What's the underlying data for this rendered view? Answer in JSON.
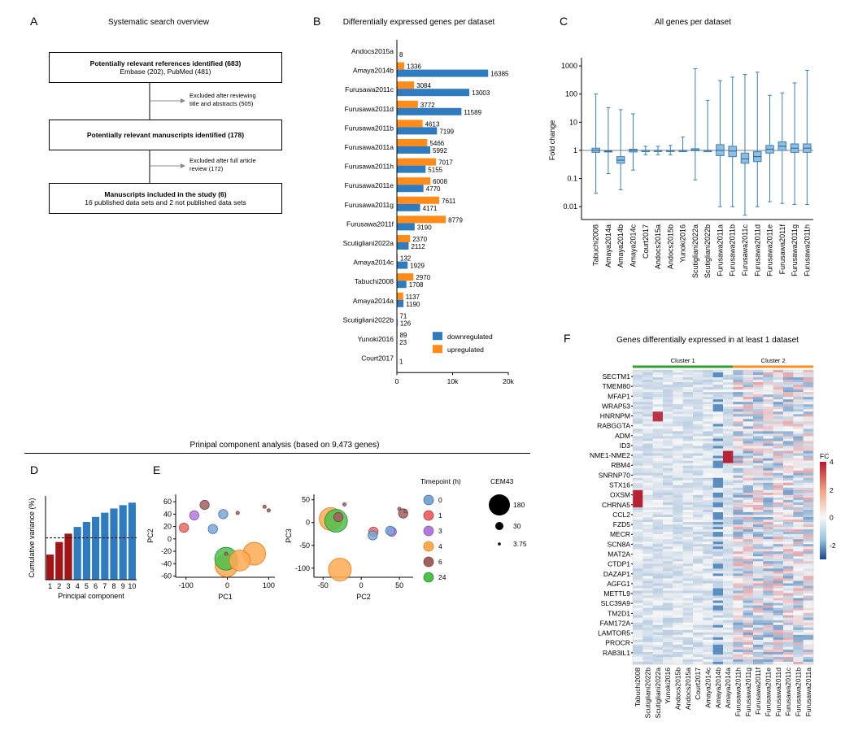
{
  "panels": {
    "A": {
      "letter": "A",
      "title": "Systematic search overview",
      "box1_title": "Potentially relevant references identified (683)",
      "box1_sub": "Embase (202), PubMed (481)",
      "note1_line1": "Excluded after reviewing",
      "note1_line2": "title and abstracts (505)",
      "box2_title": "Potentially relevant manuscripts identified (178)",
      "note2_line1": "Excluded after full article",
      "note2_line2": "review (172)",
      "box3_title": "Manuscripts included in the study (6)",
      "box3_sub": "16 published data sets and 2 not published data sets"
    },
    "B": {
      "letter": "B"
    },
    "C": {
      "letter": "C"
    },
    "D": {
      "letter": "D"
    },
    "E": {
      "letter": "E"
    },
    "F": {
      "letter": "F"
    },
    "pca_header": "Prinipal component analysis (based on 9,473 genes)"
  },
  "colors": {
    "blue": "#2e7bbf",
    "orange": "#ff8c1a",
    "darkred": "#a01515",
    "boxblue": "#8fbfe0",
    "green": "#2ca02c"
  },
  "chart_data": [
    {
      "id": "B",
      "type": "bar",
      "title": "Differentially expressed genes per dataset",
      "categories": [
        "Andocs2015a",
        "Amaya2014b",
        "Furusawa2011c",
        "Furusawa2011d",
        "Furusawa2011b",
        "Furusawa2011a",
        "Furusawa2011h",
        "Furusawa2011e",
        "Furusawa2011g",
        "Furusawa2011f",
        "Scutigliani2022a",
        "Amaya2014c",
        "Tabuchi2008",
        "Amaya2014a",
        "Scutigliani2022b",
        "Yunoki2016",
        "Court2017"
      ],
      "series": [
        {
          "name": "upregulated",
          "values": [
            null,
            1336,
            3084,
            3772,
            4613,
            5466,
            7017,
            6008,
            7611,
            8779,
            2370,
            132,
            2970,
            1137,
            71,
            89,
            null
          ]
        },
        {
          "name": "downregulated",
          "values": [
            8,
            16385,
            13003,
            11589,
            7199,
            5992,
            5155,
            4770,
            4171,
            3190,
            2112,
            1929,
            1708,
            1190,
            126,
            23,
            1
          ]
        }
      ],
      "xticks": [
        "0",
        "10k",
        "20k"
      ],
      "xlim": [
        0,
        20000
      ],
      "legend": [
        "downregulated",
        "upregulated"
      ]
    },
    {
      "id": "C",
      "type": "box",
      "title": "All genes per dataset",
      "ylabel": "Fold change",
      "yticks": [
        "0.01",
        "0.1",
        "1",
        "10",
        "100",
        "1000"
      ],
      "categories": [
        "Tabuchi2008",
        "Amaya2014a",
        "Amaya2014b",
        "Amaya2014c",
        "Court2017",
        "Andocs2015a",
        "Andocs2015b",
        "Yunoki2016",
        "Scutigliani2022a",
        "Scutigliani2022b",
        "Furusawa2011a",
        "Furusawa2011b",
        "Furusawa2011c",
        "Furusawa2011d",
        "Furusawa2011e",
        "Furusawa2011f",
        "Furusawa2011g",
        "Furusawa2011h"
      ],
      "boxes": [
        {
          "lo": 0.03,
          "q1": 0.85,
          "med": 1.0,
          "q3": 1.2,
          "hi": 100
        },
        {
          "lo": 0.15,
          "q1": 0.88,
          "med": 0.93,
          "q3": 0.98,
          "hi": 33
        },
        {
          "lo": 0.04,
          "q1": 0.35,
          "med": 0.45,
          "q3": 0.6,
          "hi": 28
        },
        {
          "lo": 0.2,
          "q1": 0.88,
          "med": 1.0,
          "q3": 1.1,
          "hi": 20
        },
        {
          "lo": 0.7,
          "q1": 1.0,
          "med": 1.0,
          "q3": 1.0,
          "hi": 1.4
        },
        {
          "lo": 0.7,
          "q1": 1.0,
          "med": 1.0,
          "q3": 1.0,
          "hi": 1.4
        },
        {
          "lo": 0.7,
          "q1": 1.0,
          "med": 1.0,
          "q3": 1.0,
          "hi": 1.5
        },
        {
          "lo": 0.9,
          "q1": 1.0,
          "med": 1.0,
          "q3": 1.0,
          "hi": 3
        },
        {
          "lo": 0.09,
          "q1": 0.98,
          "med": 1.02,
          "q3": 1.15,
          "hi": 800
        },
        {
          "lo": 0.9,
          "q1": 1.0,
          "med": 1.0,
          "q3": 1.0,
          "hi": 60
        },
        {
          "lo": 0.01,
          "q1": 0.65,
          "med": 1.0,
          "q3": 1.6,
          "hi": 300
        },
        {
          "lo": 0.01,
          "q1": 0.6,
          "med": 0.95,
          "q3": 1.4,
          "hi": 400
        },
        {
          "lo": 0.005,
          "q1": 0.35,
          "med": 0.5,
          "q3": 0.8,
          "hi": 500
        },
        {
          "lo": 0.01,
          "q1": 0.4,
          "med": 0.6,
          "q3": 0.9,
          "hi": 600
        },
        {
          "lo": 0.015,
          "q1": 0.8,
          "med": 1.1,
          "q3": 1.5,
          "hi": 90
        },
        {
          "lo": 0.013,
          "q1": 1.0,
          "med": 1.4,
          "q3": 2.0,
          "hi": 110
        },
        {
          "lo": 0.012,
          "q1": 0.85,
          "med": 1.2,
          "q3": 1.7,
          "hi": 250
        },
        {
          "lo": 0.012,
          "q1": 0.85,
          "med": 1.2,
          "q3": 1.7,
          "hi": 700
        }
      ]
    },
    {
      "id": "D",
      "type": "bar",
      "ylabel": "Cumulative variance (%)",
      "xlabel": "Principal component",
      "categories": [
        "1",
        "2",
        "3",
        "4",
        "5",
        "6",
        "7",
        "8",
        "9",
        "10"
      ],
      "values": [
        30,
        45,
        55,
        63,
        69,
        75,
        80,
        85,
        89,
        92
      ],
      "threshold": 50,
      "ylim": [
        0,
        100
      ]
    },
    {
      "id": "E1",
      "type": "scatter",
      "xlabel": "PC1",
      "ylabel": "PC2",
      "xticks": [
        -100,
        0,
        100
      ],
      "yticks": [
        -60,
        -40,
        -20,
        0,
        20,
        40,
        60
      ],
      "xlim": [
        -125,
        115
      ],
      "ylim": [
        -62,
        72
      ],
      "points": [
        {
          "x": -80,
          "y": 38,
          "t": "3",
          "s": 30
        },
        {
          "x": -55,
          "y": 55,
          "t": "6",
          "s": 30
        },
        {
          "x": -105,
          "y": 18,
          "t": "1",
          "s": 30
        },
        {
          "x": -10,
          "y": 40,
          "t": "0",
          "s": 30
        },
        {
          "x": -35,
          "y": 16,
          "t": "0",
          "s": 30
        },
        {
          "x": 25,
          "y": 42,
          "t": "6",
          "s": 4
        },
        {
          "x": 90,
          "y": 52,
          "t": "6",
          "s": 4
        },
        {
          "x": 100,
          "y": 46,
          "t": "6",
          "s": 4
        },
        {
          "x": 65,
          "y": -24,
          "t": "4",
          "s": 180
        },
        {
          "x": 30,
          "y": -35,
          "t": "4",
          "s": 150
        },
        {
          "x": -2,
          "y": -43,
          "t": "4",
          "s": 180
        },
        {
          "x": -3,
          "y": -32,
          "t": "24",
          "s": 180
        },
        {
          "x": -3,
          "y": -24,
          "t": "6",
          "s": 4
        }
      ]
    },
    {
      "id": "E2",
      "type": "scatter",
      "xlabel": "PC2",
      "ylabel": "PC3",
      "xticks": [
        -50,
        0,
        50
      ],
      "yticks": [
        -100,
        -50,
        0,
        50
      ],
      "xlim": [
        -62,
        68
      ],
      "ylim": [
        -120,
        62
      ],
      "points": [
        {
          "x": -40,
          "y": 8,
          "t": "4",
          "s": 180
        },
        {
          "x": -33,
          "y": 4,
          "t": "24",
          "s": 180
        },
        {
          "x": -30,
          "y": 12,
          "t": "6",
          "s": 30
        },
        {
          "x": -22,
          "y": 40,
          "t": "6",
          "s": 4
        },
        {
          "x": -28,
          "y": -103,
          "t": "4",
          "s": 180
        },
        {
          "x": 16,
          "y": -20,
          "t": "1",
          "s": 30
        },
        {
          "x": 15,
          "y": -28,
          "t": "0",
          "s": 30
        },
        {
          "x": 40,
          "y": -20,
          "t": "3",
          "s": 30
        },
        {
          "x": 38,
          "y": -18,
          "t": "0",
          "s": 30
        },
        {
          "x": 55,
          "y": 20,
          "t": "6",
          "s": 30
        },
        {
          "x": 50,
          "y": 30,
          "t": "6",
          "s": 4
        },
        {
          "x": 58,
          "y": 25,
          "t": "6",
          "s": 4
        }
      ]
    },
    {
      "id": "E_legend",
      "type": "legend",
      "title_timepoint": "Timepoint (h)",
      "timepoints": [
        "0",
        "1",
        "3",
        "4",
        "6",
        "24"
      ],
      "timepoint_colors": [
        "#7aa6d6",
        "#e86a6a",
        "#b07ad6",
        "#ffaa55",
        "#a06060",
        "#4cbf4c"
      ],
      "title_size": "CEM43",
      "sizes": [
        "180",
        "30",
        "3.75"
      ]
    },
    {
      "id": "F",
      "type": "heatmap",
      "title": "Genes differentially expressed in at least 1 dataset",
      "cluster1": "Cluster 1",
      "cluster2": "Cluster 2",
      "colorbar_label": "FC",
      "colorbar_ticks": [
        "4",
        "2",
        "0",
        "-2"
      ],
      "row_labels": [
        "SECTM1",
        "TMEM80",
        "MFAP1",
        "WRAP53",
        "HNRNPM",
        "RABGGTA",
        "ADM",
        "ID3",
        "NME1-NME2",
        "RBM4",
        "SNRNP70",
        "STX16",
        "OXSM",
        "CHRNA5",
        "CCL2",
        "FZD5",
        "MECR",
        "SCN8A",
        "MAT2A",
        "CTDP1",
        "DAZAP1",
        "AGFG1",
        "METTL9",
        "SLC39A9",
        "TM2D1",
        "FAM172A",
        "LAMTOR5",
        "PROCR",
        "RAB3IL1"
      ],
      "col_labels": [
        "Tabuchi2008",
        "Scutigliani2022b",
        "Scutigliani2022a",
        "Yunoki2016",
        "Andocs2015b",
        "Andocs2015a",
        "Court2017",
        "Amaya2014c",
        "Amaya2014b",
        "Amaya2014a",
        "Furusawa2011h",
        "Furusawa2011g",
        "Furusawa2011f",
        "Furusawa2011e",
        "Furusawa2011d",
        "Furusawa2011c",
        "Furusawa2011b",
        "Furusawa2011a"
      ]
    }
  ]
}
